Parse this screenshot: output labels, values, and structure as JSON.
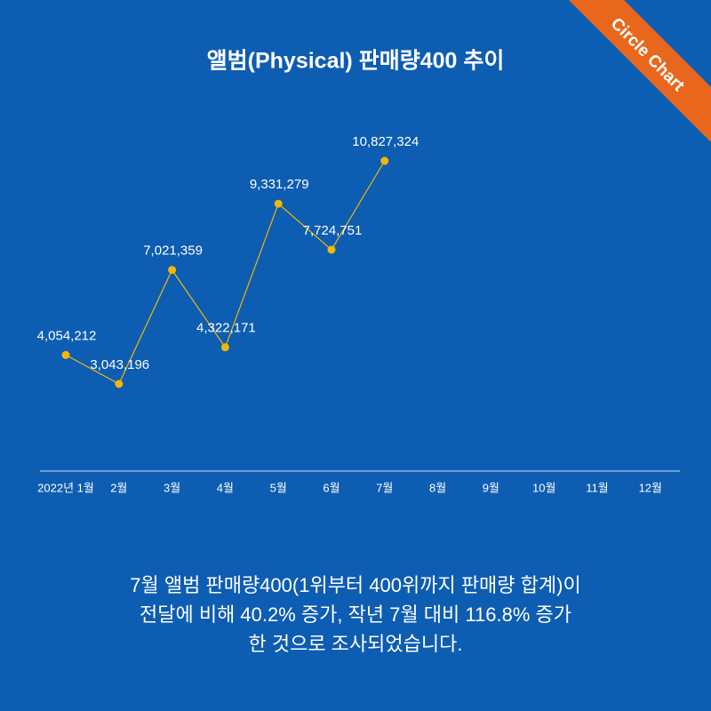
{
  "badge": "Circle Chart",
  "chart_data": {
    "type": "line",
    "title": "앨범(Physical) 판매량400 추이",
    "categories": [
      "2022년 1월",
      "2월",
      "3월",
      "4월",
      "5월",
      "6월",
      "7월",
      "8월",
      "9월",
      "10월",
      "11월",
      "12월"
    ],
    "series": [
      {
        "color": "#f2b705",
        "values": [
          4054212,
          3043196,
          7021359,
          4322171,
          9331279,
          7724751,
          10827324,
          null,
          null,
          null,
          null,
          null
        ],
        "value_labels": [
          "4,054,212",
          "3,043,196",
          "7,021,359",
          "4,322,171",
          "9,331,279",
          "7,724,751",
          "10,827,324",
          null,
          null,
          null,
          null,
          null
        ]
      }
    ]
  },
  "caption": [
    "7월 앨범 판매량400(1위부터 400위까지 판매량 합계)이",
    "전달에 비해 40.2% 증가, 작년 7월 대비 116.8% 증가",
    "한 것으로 조사되었습니다."
  ]
}
